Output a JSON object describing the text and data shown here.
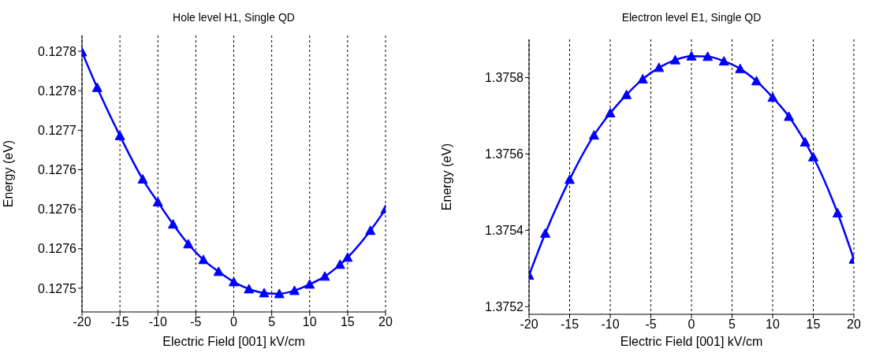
{
  "chart_data": [
    {
      "type": "line",
      "title": "Hole level H1, Single QD",
      "xlabel": "Electric Field [001]  kV/cm",
      "ylabel": "Energy (eV)",
      "x": [
        -20,
        -18,
        -15,
        -12,
        -10,
        -8,
        -6,
        -4,
        -2,
        0,
        2,
        4,
        6,
        8,
        10,
        12,
        14,
        15,
        18,
        20
      ],
      "series": [
        {
          "color": "#0000ff",
          "values": [
            0.127799,
            0.127754,
            0.127693,
            0.127638,
            0.127609,
            0.127581,
            0.127556,
            0.127536,
            0.127521,
            0.127508,
            0.127499,
            0.127494,
            0.127493,
            0.127497,
            0.127505,
            0.127515,
            0.12753,
            0.127539,
            0.127573,
            0.1276
          ]
        }
      ],
      "xlim": [
        -20,
        20
      ],
      "xticks": [
        -20,
        -15,
        -10,
        -5,
        0,
        5,
        10,
        15,
        20
      ],
      "ylim": [
        0.12747,
        0.12782
      ],
      "yticks": [
        {
          "value": 0.1275,
          "label": "0.1275"
        },
        {
          "value": 0.12755,
          "label": "0.1276"
        },
        {
          "value": 0.1276,
          "label": "0.1276"
        },
        {
          "value": 0.12765,
          "label": "0.1276"
        },
        {
          "value": 0.1277,
          "label": "0.1277"
        },
        {
          "value": 0.12775,
          "label": "0.1278"
        },
        {
          "value": 0.1278,
          "label": "0.1278"
        }
      ],
      "grid": "x",
      "marker": "triangle",
      "line_style": "solid",
      "legend": false
    },
    {
      "type": "line",
      "title": "Electron level E1, Single QD",
      "xlabel": "Electric Field [001]  kV/cm",
      "ylabel": "Energy (eV)",
      "x": [
        -20,
        -18,
        -15,
        -12,
        -10,
        -8,
        -6,
        -4,
        -2,
        0,
        2,
        4,
        6,
        8,
        10,
        12,
        14,
        15,
        18,
        20
      ],
      "series": [
        {
          "color": "#0000ff",
          "values": [
            1.375282,
            1.375392,
            1.375533,
            1.375649,
            1.375707,
            1.375755,
            1.375796,
            1.375826,
            1.375846,
            1.375856,
            1.375855,
            1.375843,
            1.375823,
            1.375791,
            1.375748,
            1.375698,
            1.375631,
            1.375592,
            1.375445,
            1.375324
          ]
        }
      ],
      "xlim": [
        -20,
        20
      ],
      "xticks": [
        -20,
        -15,
        -10,
        -5,
        0,
        5,
        10,
        15,
        20
      ],
      "ylim": [
        1.37518,
        1.3759
      ],
      "yticks": [
        1.3752,
        1.3754,
        1.3756,
        1.3758
      ],
      "grid": "x",
      "marker": "triangle",
      "line_style": "solid",
      "legend": false
    }
  ]
}
